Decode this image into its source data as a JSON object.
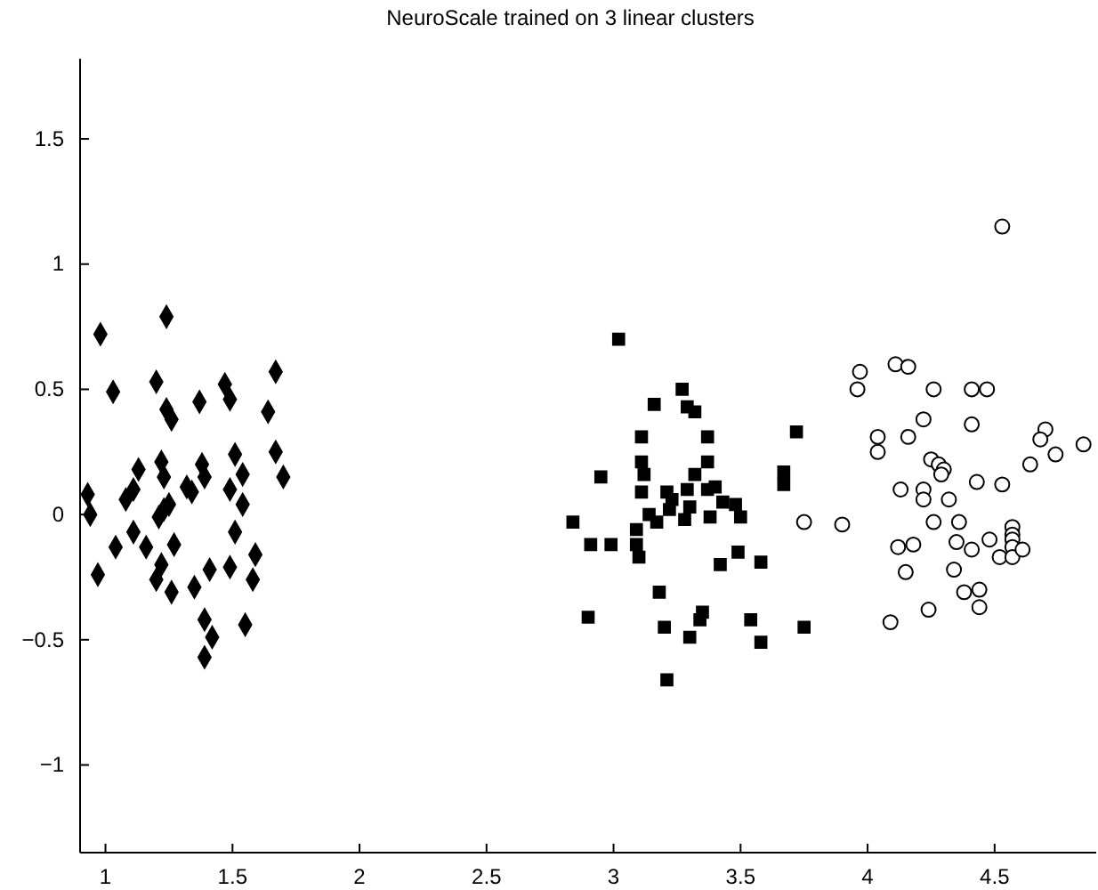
{
  "chart_data": {
    "type": "scatter",
    "title": "NeuroScale trained on 3 linear clusters",
    "xlim": [
      0.9,
      4.9
    ],
    "ylim": [
      -1.35,
      1.82
    ],
    "xticks": [
      1,
      1.5,
      2,
      2.5,
      3,
      3.5,
      4,
      4.5
    ],
    "yticks": [
      {
        "value": -1,
        "label": "−1"
      },
      {
        "value": -0.5,
        "label": "−0.5"
      },
      0,
      0.5,
      1,
      1.5
    ],
    "grid": false,
    "series": [
      {
        "color": "#000000",
        "marker": "diamond",
        "x": [
          1.24,
          0.98,
          1.03,
          1.2,
          1.47,
          1.67,
          1.37,
          1.49,
          1.24,
          1.26,
          1.64,
          1.22,
          1.38,
          1.51,
          1.67,
          1.13,
          1.23,
          1.39,
          1.54,
          1.7,
          1.11,
          1.32,
          1.34,
          1.49,
          0.93,
          1.08,
          1.25,
          1.23,
          1.54,
          0.94,
          1.21,
          1.11,
          1.51,
          1.04,
          1.16,
          1.27,
          1.59,
          1.22,
          1.41,
          1.49,
          0.97,
          1.2,
          1.58,
          1.26,
          1.35,
          1.39,
          1.55,
          1.42,
          1.39
        ],
        "values": [
          0.79,
          0.72,
          0.49,
          0.53,
          0.52,
          0.57,
          0.45,
          0.46,
          0.42,
          0.38,
          0.41,
          0.21,
          0.2,
          0.24,
          0.25,
          0.18,
          0.15,
          0.15,
          0.16,
          0.15,
          0.1,
          0.11,
          0.09,
          0.1,
          0.08,
          0.06,
          0.04,
          0.02,
          0.04,
          0.0,
          -0.01,
          -0.07,
          -0.07,
          -0.13,
          -0.13,
          -0.12,
          -0.16,
          -0.2,
          -0.22,
          -0.21,
          -0.24,
          -0.26,
          -0.26,
          -0.31,
          -0.29,
          -0.42,
          -0.44,
          -0.49,
          -0.57
        ]
      },
      {
        "color": "#000000",
        "marker": "square",
        "x": [
          3.02,
          3.27,
          3.16,
          3.29,
          3.32,
          3.11,
          3.37,
          3.11,
          3.37,
          3.12,
          2.95,
          3.32,
          3.11,
          3.21,
          3.29,
          3.37,
          3.4,
          3.23,
          3.43,
          3.48,
          3.3,
          3.22,
          3.14,
          3.17,
          3.28,
          3.38,
          3.5,
          2.84,
          3.09,
          2.91,
          2.99,
          3.09,
          3.1,
          3.49,
          3.42,
          3.58,
          3.18,
          2.9,
          3.2,
          3.35,
          3.34,
          3.3,
          3.54,
          3.58,
          3.21,
          3.72,
          3.67,
          3.67,
          3.75
        ],
        "values": [
          0.7,
          0.5,
          0.44,
          0.43,
          0.41,
          0.31,
          0.31,
          0.21,
          0.21,
          0.16,
          0.15,
          0.16,
          0.09,
          0.09,
          0.1,
          0.1,
          0.11,
          0.06,
          0.05,
          0.04,
          0.03,
          0.02,
          0.0,
          -0.03,
          -0.02,
          -0.01,
          -0.01,
          -0.03,
          -0.06,
          -0.12,
          -0.12,
          -0.12,
          -0.17,
          -0.15,
          -0.2,
          -0.19,
          -0.31,
          -0.41,
          -0.45,
          -0.39,
          -0.42,
          -0.49,
          -0.42,
          -0.51,
          -0.66,
          0.33,
          0.17,
          0.12,
          -0.45
        ]
      },
      {
        "color": "#000000",
        "marker": "circle",
        "x": [
          4.53,
          3.97,
          3.96,
          4.11,
          4.16,
          4.26,
          4.41,
          4.47,
          4.22,
          4.41,
          4.04,
          4.04,
          4.16,
          4.7,
          4.68,
          4.74,
          4.64,
          4.85,
          4.25,
          4.28,
          4.3,
          4.29,
          4.43,
          4.53,
          4.13,
          4.22,
          4.22,
          4.32,
          3.75,
          3.9,
          4.26,
          4.36,
          4.57,
          4.57,
          4.57,
          4.57,
          4.48,
          4.12,
          4.18,
          4.35,
          4.41,
          4.52,
          4.57,
          4.61,
          4.15,
          4.34,
          4.38,
          4.44,
          4.44,
          4.24,
          4.09
        ],
        "values": [
          1.15,
          0.57,
          0.5,
          0.6,
          0.59,
          0.5,
          0.5,
          0.5,
          0.38,
          0.36,
          0.31,
          0.25,
          0.31,
          0.34,
          0.3,
          0.24,
          0.2,
          0.28,
          0.22,
          0.2,
          0.18,
          0.16,
          0.13,
          0.12,
          0.1,
          0.1,
          0.06,
          0.06,
          -0.03,
          -0.04,
          -0.03,
          -0.03,
          -0.05,
          -0.08,
          -0.1,
          -0.13,
          -0.1,
          -0.13,
          -0.12,
          -0.11,
          -0.14,
          -0.17,
          -0.17,
          -0.14,
          -0.23,
          -0.22,
          -0.31,
          -0.3,
          -0.37,
          -0.38,
          -0.43
        ]
      }
    ]
  }
}
